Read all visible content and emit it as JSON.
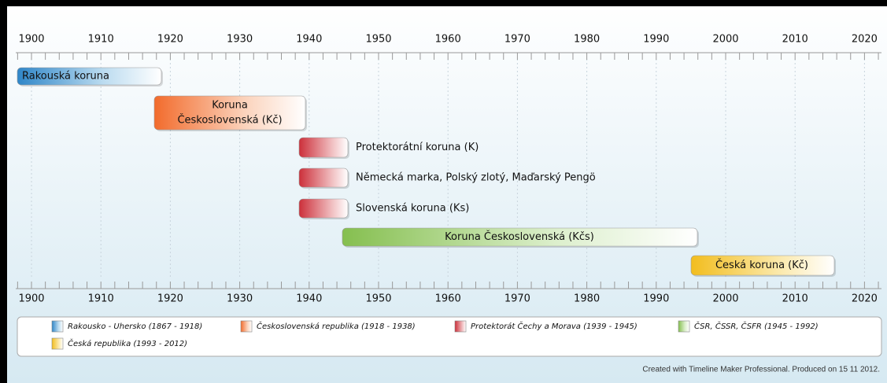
{
  "timeline": {
    "years": [
      1900,
      1910,
      1920,
      1930,
      1940,
      1950,
      1960,
      1970,
      1980,
      1990,
      2000,
      2010,
      2020
    ],
    "bars": [
      {
        "label": "Rakouská koruna"
      },
      {
        "label": [
          "Koruna",
          "Československá (Kč)"
        ]
      },
      {
        "label": "Protektorátní koruna (K)"
      },
      {
        "label": "Německá marka, Polský zlotý, Maďarský Pengö"
      },
      {
        "label": "Slovenská koruna (Ks)"
      },
      {
        "label": "Koruna Československá (Kčs)"
      },
      {
        "label": "Česká koruna (Kč)"
      }
    ],
    "legend": [
      "Rakousko - Uhersko (1867 - 1918)",
      "Československá republika (1918 - 1938)",
      "Protektorát Čechy a Morava (1939 - 1945)",
      "ČSR, ČSSR, ČSFR (1945 - 1992)",
      "Česká republika (1993 - 2012)"
    ],
    "footer": "Created with Timeline Maker Professional. Produced on 15 11 2012."
  }
}
